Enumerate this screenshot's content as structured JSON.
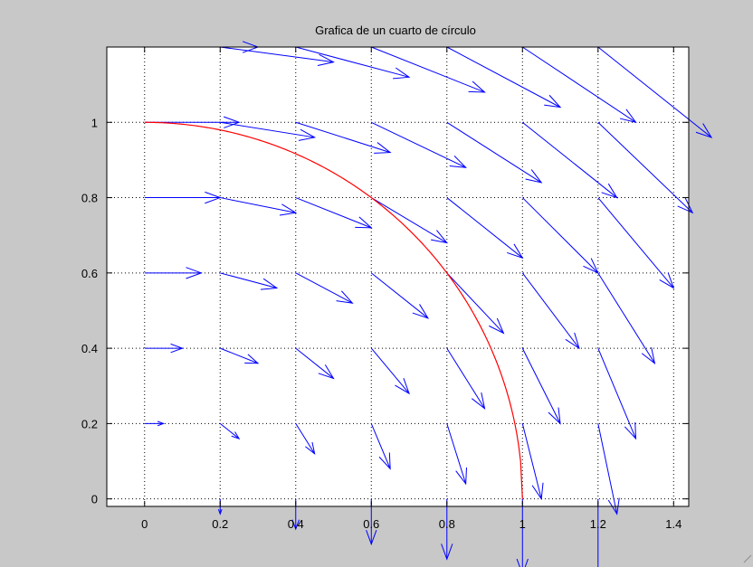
{
  "figure": {
    "background": "#c8c8c8"
  },
  "chart_data": {
    "type": "line",
    "title": "Grafica de un cuarto de círculo",
    "xlabel": "",
    "ylabel": "",
    "xlim": [
      -0.1,
      1.44
    ],
    "ylim": [
      -0.02,
      1.2
    ],
    "grid": true,
    "grid_style": "dotted",
    "xticks": [
      0,
      0.2,
      0.4,
      0.6,
      0.8,
      1,
      1.2,
      1.4
    ],
    "xtick_labels": [
      "0",
      "0.2",
      "0.4",
      "0.6",
      "0.8",
      "1",
      "1.2",
      "1.4"
    ],
    "yticks": [
      0,
      0.2,
      0.4,
      0.6,
      0.8,
      1
    ],
    "ytick_labels": [
      "0",
      "0.2",
      "0.4",
      "0.6",
      "0.8",
      "1"
    ],
    "series": [
      {
        "type": "line",
        "color": "#ff0000",
        "x": [
          0,
          0.2,
          0.4,
          0.6,
          0.8,
          1,
          1
        ],
        "y": [
          1,
          0.9798,
          0.9165,
          0.8,
          0.6,
          0,
          0
        ]
      },
      {
        "type": "quiver",
        "color": "#0000ff",
        "x": [
          0,
          0.2,
          0.4,
          0.6,
          0.8,
          1,
          1.2
        ],
        "y": [
          0,
          0.2,
          0.4,
          0.6,
          0.8,
          1,
          1.2
        ],
        "u": [
          [
            0,
            0,
            0,
            0,
            0,
            0,
            0
          ],
          [
            0.05,
            0.05,
            0.05,
            0.05,
            0.05,
            0.05,
            0.05
          ],
          [
            0.1,
            0.1,
            0.1,
            0.1,
            0.1,
            0.1,
            0.1
          ],
          [
            0.15,
            0.15,
            0.15,
            0.15,
            0.15,
            0.15,
            0.15
          ],
          [
            0.2,
            0.2,
            0.2,
            0.2,
            0.2,
            0.2,
            0.2
          ],
          [
            0.25,
            0.25,
            0.25,
            0.25,
            0.25,
            0.25,
            0.25
          ],
          [
            0.3,
            0.3,
            0.3,
            0.3,
            0.3,
            0.3,
            0.3
          ]
        ],
        "v": [
          [
            0,
            -0.04,
            -0.08,
            -0.12,
            -0.16,
            -0.2,
            -0.24
          ],
          [
            0,
            -0.04,
            -0.08,
            -0.12,
            -0.16,
            -0.2,
            -0.24
          ],
          [
            0,
            -0.04,
            -0.08,
            -0.12,
            -0.16,
            -0.2,
            -0.24
          ],
          [
            0,
            -0.04,
            -0.08,
            -0.12,
            -0.16,
            -0.2,
            -0.24
          ],
          [
            0,
            -0.04,
            -0.08,
            -0.12,
            -0.16,
            -0.2,
            -0.24
          ],
          [
            0,
            -0.04,
            -0.08,
            -0.12,
            -0.16,
            -0.2,
            -0.24
          ],
          [
            0,
            -0.04,
            -0.08,
            -0.12,
            -0.16,
            -0.2,
            -0.24
          ]
        ]
      }
    ]
  }
}
